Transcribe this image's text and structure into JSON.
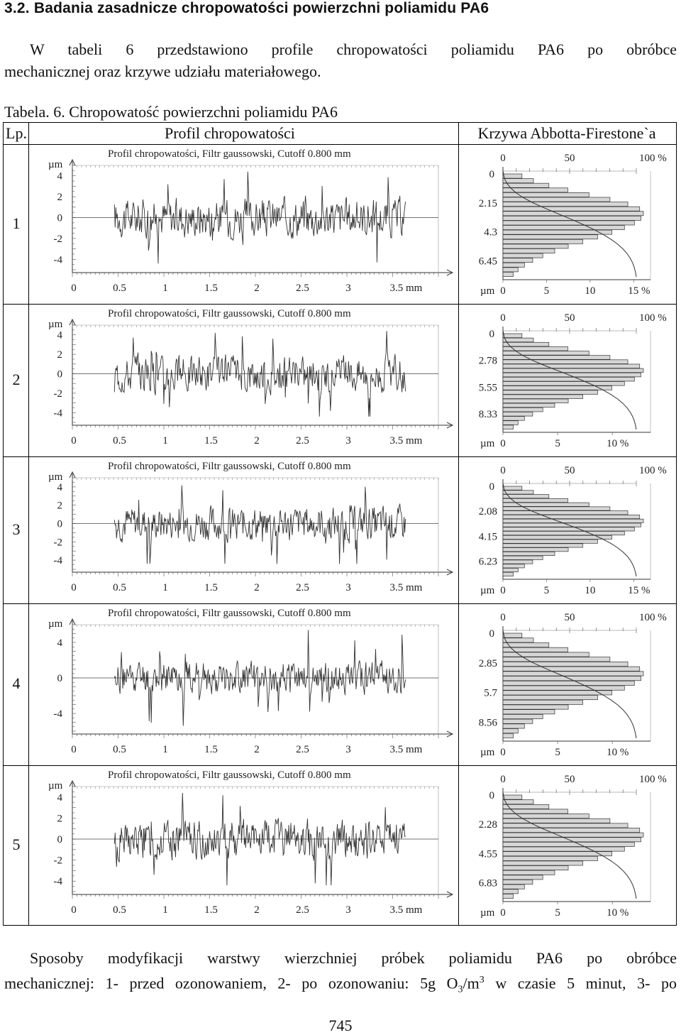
{
  "heading": "3.2. Badania zasadnicze chropowatości powierzchni poliamidu PA6",
  "intro_lines": [
    "W tabeli 6 przedstawiono profile chropowatości poliamidu PA6 po obróbce",
    "mechanicznej oraz krzywe udziału materiałowego."
  ],
  "table_caption": "Tabela. 6. Chropowatość powierzchni poliamidu PA6",
  "table_headers": {
    "lp": "Lp.",
    "profile": "Profil chropowatości",
    "curve": "Krzywa Abbotta-Firestone`a"
  },
  "profile_chart": {
    "title": "Profil chropowatości, Filtr gaussowski, Cutoff 0.800 mm",
    "y_unit": "µm",
    "x_ticks": [
      "0",
      "0.5",
      "1",
      "1.5",
      "2",
      "2.5",
      "3",
      "3.5 mm"
    ]
  },
  "abbott_chart": {
    "top_ticks": [
      "0",
      "50",
      "100 %"
    ],
    "bottom_unit": "µm"
  },
  "rows": [
    {
      "lp": "1",
      "y_ticks": [
        "4",
        "2",
        "0",
        "-2",
        "-4"
      ],
      "depth_labels": [
        "0",
        "2.15",
        "4.3",
        "6.45"
      ],
      "bottom_ticks": [
        "0",
        "5",
        "10",
        "15 %"
      ],
      "chart_data": {
        "type": "line",
        "x_range_mm": [
          0,
          4
        ],
        "y_range_um": [
          -5,
          5
        ]
      }
    },
    {
      "lp": "2",
      "y_ticks": [
        "4",
        "2",
        "0",
        "-2",
        "-4"
      ],
      "depth_labels": [
        "0",
        "2.78",
        "5.55",
        "8.33"
      ],
      "bottom_ticks": [
        "0",
        "5",
        "10 %"
      ],
      "chart_data": {
        "type": "line",
        "x_range_mm": [
          0,
          4
        ],
        "y_range_um": [
          -5,
          5
        ]
      }
    },
    {
      "lp": "3",
      "y_ticks": [
        "4",
        "2",
        "0",
        "-2",
        "-4"
      ],
      "depth_labels": [
        "0",
        "2.08",
        "4.15",
        "6.23"
      ],
      "bottom_ticks": [
        "0",
        "5",
        "10",
        "15 %"
      ],
      "chart_data": {
        "type": "line",
        "x_range_mm": [
          0,
          4
        ],
        "y_range_um": [
          -5,
          5
        ]
      }
    },
    {
      "lp": "4",
      "y_ticks": [
        "4",
        "0",
        "-4"
      ],
      "depth_labels": [
        "0",
        "2.85",
        "5.7",
        "8.56"
      ],
      "bottom_ticks": [
        "0",
        "5",
        "10 %"
      ],
      "chart_data": {
        "type": "line",
        "x_range_mm": [
          0,
          4
        ],
        "y_range_um": [
          -6,
          6
        ]
      }
    },
    {
      "lp": "5",
      "y_ticks": [
        "4",
        "2",
        "0",
        "-2",
        "-4"
      ],
      "depth_labels": [
        "0",
        "2.28",
        "4.55",
        "6.83"
      ],
      "bottom_ticks": [
        "0",
        "5",
        "10 %"
      ],
      "chart_data": {
        "type": "line",
        "x_range_mm": [
          0,
          4
        ],
        "y_range_um": [
          -5,
          5
        ]
      }
    }
  ],
  "outro": {
    "line1": "Sposoby modyfikacji warstwy wierzchniej próbek poliamidu PA6 po obróbce",
    "line2_pre": "mechanicznej: 1- przed ozonowaniem, 2- po ozonowaniu: 5g O",
    "sub": "3",
    "mid": "/m",
    "sup": "3",
    "post": " w czasie 5 minut, 3- po"
  },
  "page_number": "745"
}
